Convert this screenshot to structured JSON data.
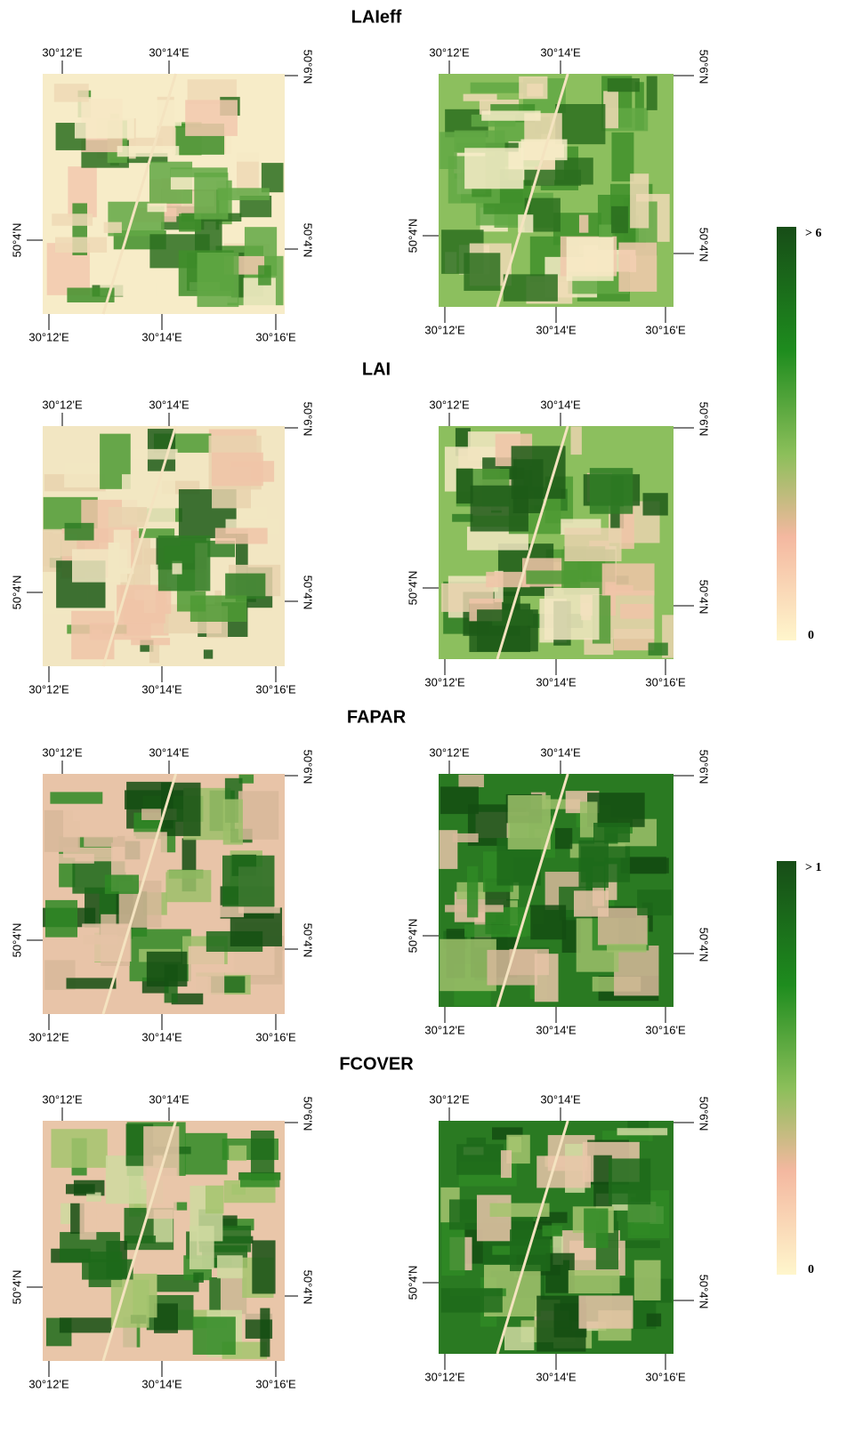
{
  "sections": [
    {
      "title": "LAIeff",
      "panels": [
        {
          "top_labels": [
            "30°12'E",
            "30°14'E"
          ],
          "bottom_labels": [
            "30°12'E",
            "30°14'E",
            "30°16'E"
          ],
          "left_label": "50°4'N",
          "right_labels": [
            "50°6'N",
            "50°4'N"
          ]
        },
        {
          "top_labels": [
            "30°12'E",
            "30°14'E"
          ],
          "bottom_labels": [
            "30°12'E",
            "30°14'E",
            "30°16'E"
          ],
          "left_label": "50°4'N",
          "right_labels": [
            "50°6'N",
            "50°4'N"
          ]
        }
      ]
    },
    {
      "title": "LAI",
      "panels": [
        {
          "top_labels": [
            "30°12'E",
            "30°14'E"
          ],
          "bottom_labels": [
            "30°12'E",
            "30°14'E",
            "30°16'E"
          ],
          "left_label": "50°4'N",
          "right_labels": [
            "50°6'N",
            "50°4'N"
          ]
        },
        {
          "top_labels": [
            "30°12'E",
            "30°14'E"
          ],
          "bottom_labels": [
            "30°12'E",
            "30°14'E",
            "30°16'E"
          ],
          "left_label": "50°4'N",
          "right_labels": [
            "50°6'N",
            "50°4'N"
          ]
        }
      ]
    },
    {
      "title": "FAPAR",
      "panels": [
        {
          "top_labels": [
            "30°12'E",
            "30°14'E"
          ],
          "bottom_labels": [
            "30°12'E",
            "30°14'E",
            "30°16'E"
          ],
          "left_label": "50°4'N",
          "right_labels": [
            "50°6'N",
            "50°4'N"
          ]
        },
        {
          "top_labels": [
            "30°12'E",
            "30°14'E"
          ],
          "bottom_labels": [
            "30°12'E",
            "30°14'E",
            "30°16'E"
          ],
          "left_label": "50°4'N",
          "right_labels": [
            "50°6'N",
            "50°4'N"
          ]
        }
      ]
    },
    {
      "title": "FCOVER",
      "panels": [
        {
          "top_labels": [
            "30°12'E",
            "30°14'E"
          ],
          "bottom_labels": [
            "30°12'E",
            "30°14'E",
            "30°16'E"
          ],
          "left_label": "50°4'N",
          "right_labels": [
            "50°6'N",
            "50°4'N"
          ]
        },
        {
          "top_labels": [
            "30°12'E",
            "30°14'E"
          ],
          "bottom_labels": [
            "30°12'E",
            "30°14'E",
            "30°16'E"
          ],
          "left_label": "50°4'N",
          "right_labels": [
            "50°6'N",
            "50°4'N"
          ]
        }
      ]
    }
  ],
  "colorbars": [
    {
      "max_label": "> 6",
      "min_label": "0"
    },
    {
      "max_label": "> 1",
      "min_label": "0"
    }
  ]
}
